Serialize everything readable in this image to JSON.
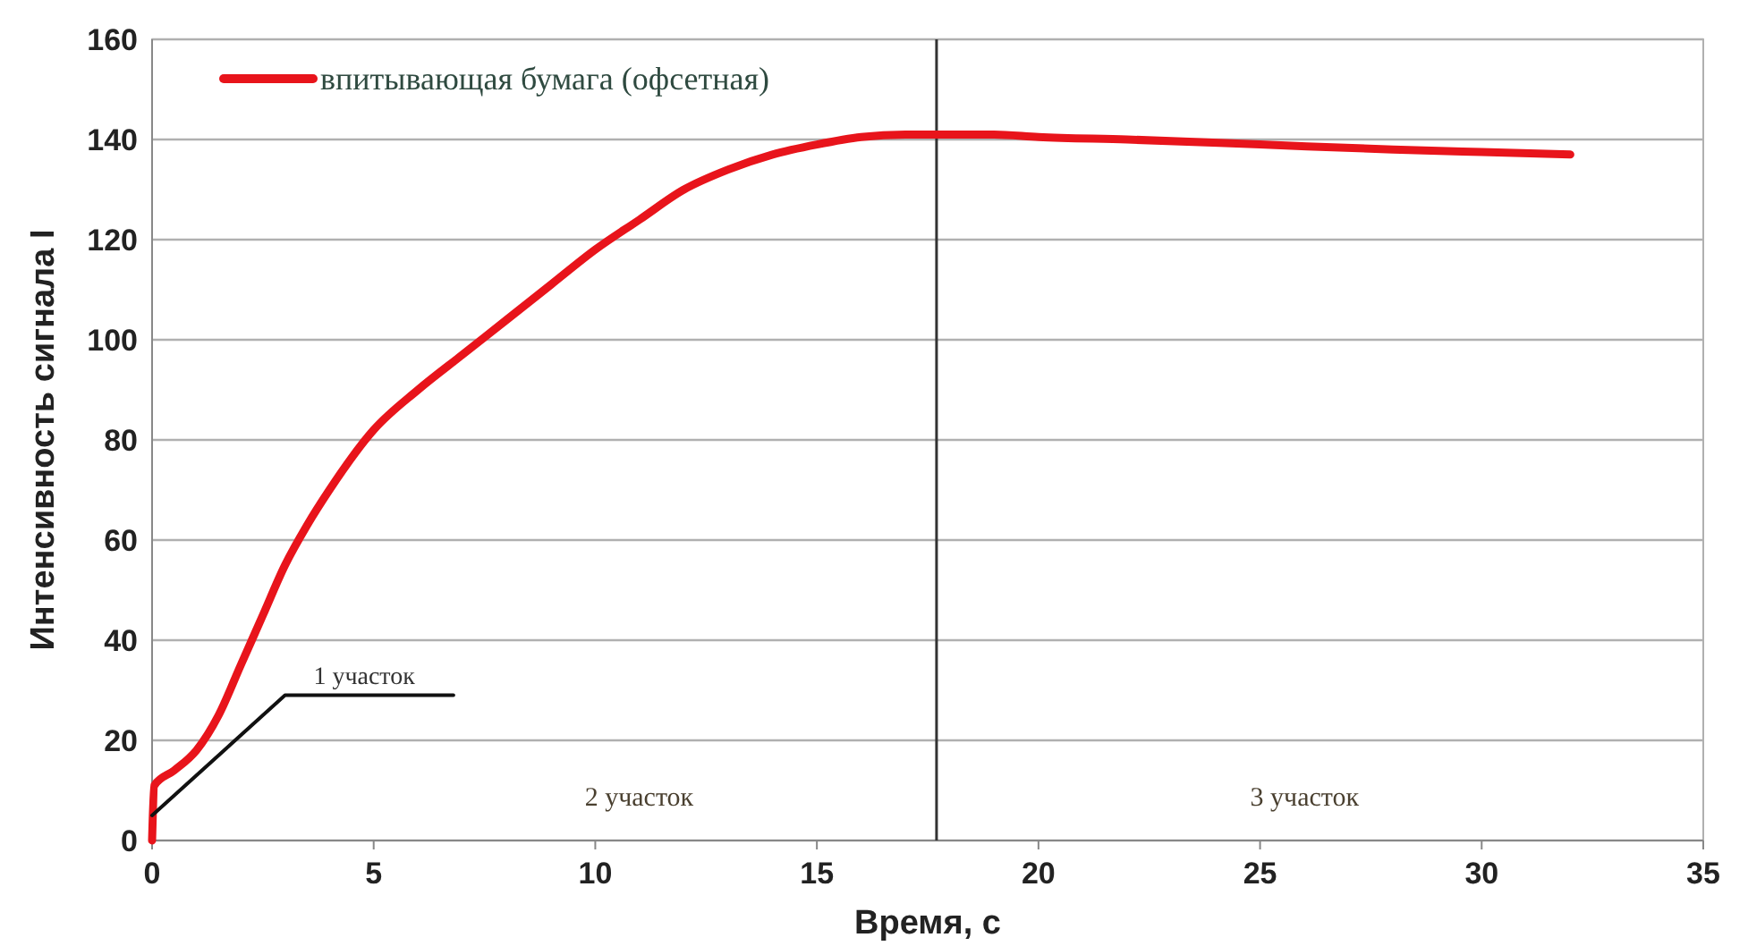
{
  "chart_data": {
    "type": "line",
    "xlabel": "Время, с",
    "ylabel": "Интенсивность сигнала I",
    "xlim": [
      0,
      35
    ],
    "xticks": [
      0,
      5,
      10,
      15,
      20,
      25,
      30,
      35
    ],
    "ylim": [
      0,
      160
    ],
    "yticks": [
      0,
      20,
      40,
      60,
      80,
      100,
      120,
      140,
      160
    ],
    "grid": "y",
    "legend": "top left",
    "marker": "none",
    "line_style": "solid",
    "series": [
      {
        "name": "впитывающая бумага (офсетная)",
        "color": "#e8141b",
        "x": [
          0,
          0.05,
          0.5,
          1,
          1.5,
          2,
          2.5,
          3,
          3.5,
          4,
          5,
          6,
          7,
          8,
          9,
          10,
          11,
          12,
          13,
          14,
          15,
          16,
          17,
          17.7,
          19,
          20,
          22,
          25,
          28,
          30,
          32
        ],
        "values": [
          0,
          11,
          14,
          18,
          25,
          35,
          45,
          55,
          63,
          70,
          82,
          90,
          97,
          104,
          111,
          118,
          124,
          130,
          134,
          137,
          139,
          140.5,
          141,
          141,
          141,
          140.5,
          140,
          139,
          138,
          137.5,
          137
        ]
      },
      {
        "color": "#111111",
        "x": [
          0,
          3,
          6.8
        ],
        "values": [
          5,
          29,
          29
        ]
      }
    ],
    "ref_lines": [
      {
        "axis": "x",
        "value": 17.7,
        "color": "#333333"
      }
    ],
    "annotations": [
      "1 участок",
      "2 участок",
      "3 участок"
    ]
  }
}
